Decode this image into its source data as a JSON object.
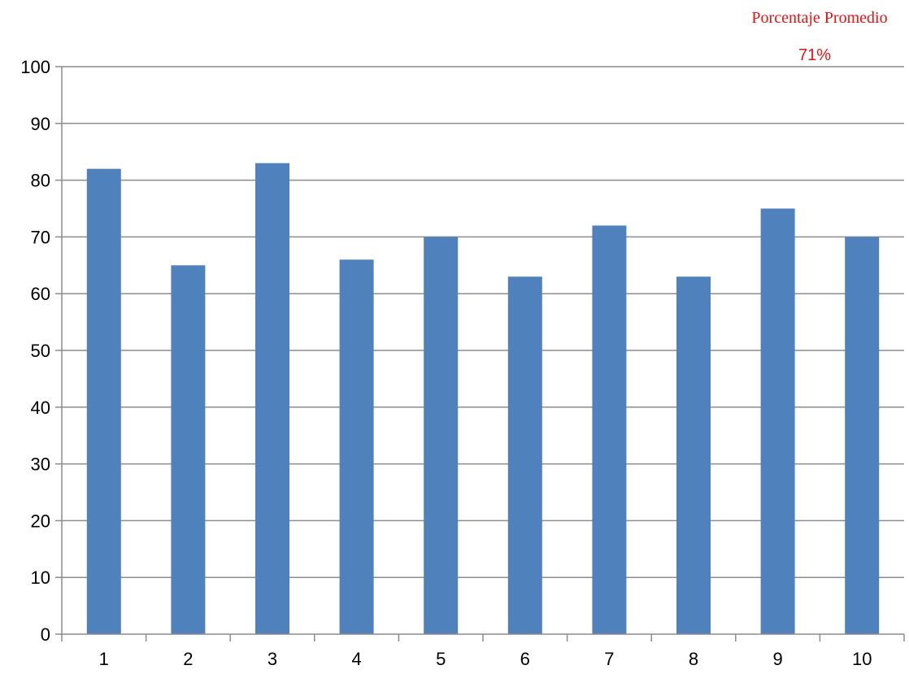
{
  "annotation": {
    "title": "Porcentaje Promedio",
    "value": "71%",
    "color": "#ee1111"
  },
  "chart_data": {
    "type": "bar",
    "categories": [
      "1",
      "2",
      "3",
      "4",
      "5",
      "6",
      "7",
      "8",
      "9",
      "10"
    ],
    "values": [
      82,
      65,
      83,
      66,
      70,
      63,
      72,
      63,
      75,
      70
    ],
    "ylim": [
      0,
      100
    ],
    "yticks": [
      0,
      10,
      20,
      30,
      40,
      50,
      60,
      70,
      80,
      90,
      100
    ],
    "grid": true,
    "legend": "none",
    "bar_color": "#4f81bd",
    "grid_color": "#8c8c8c"
  }
}
